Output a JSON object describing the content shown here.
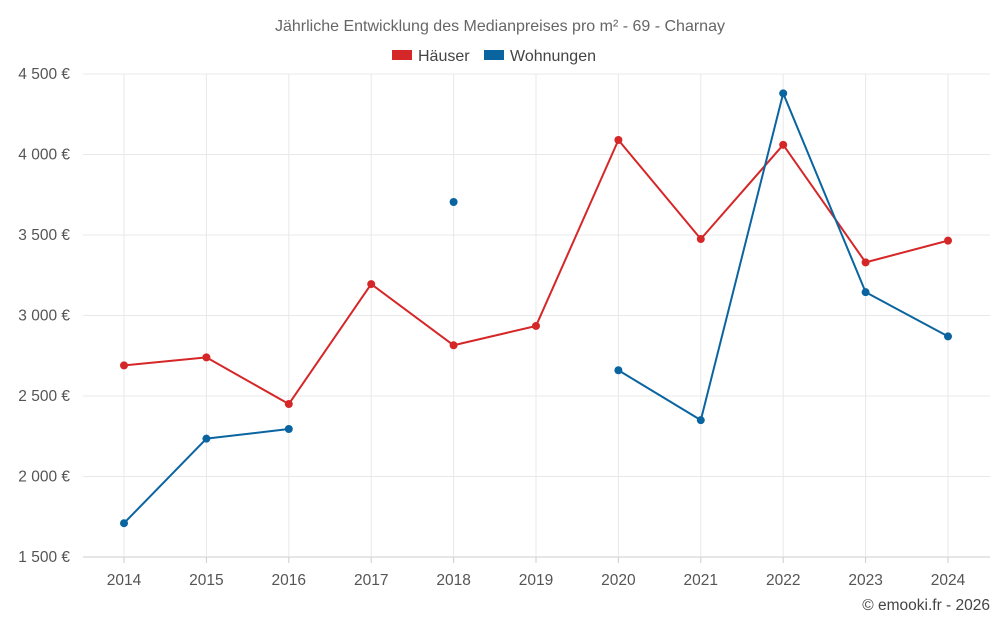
{
  "chart_data": {
    "type": "line",
    "title": "Jährliche Entwicklung des Medianpreises pro m² - 69 - Charnay",
    "categories": [
      "2014",
      "2015",
      "2016",
      "2017",
      "2018",
      "2019",
      "2020",
      "2021",
      "2022",
      "2023",
      "2024"
    ],
    "series": [
      {
        "name": "Häuser",
        "color": "#d62728",
        "values": [
          2690,
          2740,
          2450,
          3195,
          2815,
          2935,
          4090,
          3475,
          4060,
          3330,
          3465
        ]
      },
      {
        "name": "Wohnungen",
        "color": "#0a64a0",
        "values": [
          1710,
          2235,
          2295,
          null,
          3705,
          null,
          2660,
          2350,
          4380,
          3145,
          2870
        ]
      }
    ],
    "ylim": [
      1500,
      4500
    ],
    "yticks": [
      1500,
      2000,
      2500,
      3000,
      3500,
      4000,
      4500
    ],
    "ytick_labels": [
      "1 500 €",
      "2 000 €",
      "2 500 €",
      "3 000 €",
      "3 500 €",
      "4 000 €",
      "4 500 €"
    ],
    "xlabel": "",
    "ylabel": "",
    "grid": true,
    "legend_position": "top-center"
  },
  "credit": "© emooki.fr - 2026"
}
